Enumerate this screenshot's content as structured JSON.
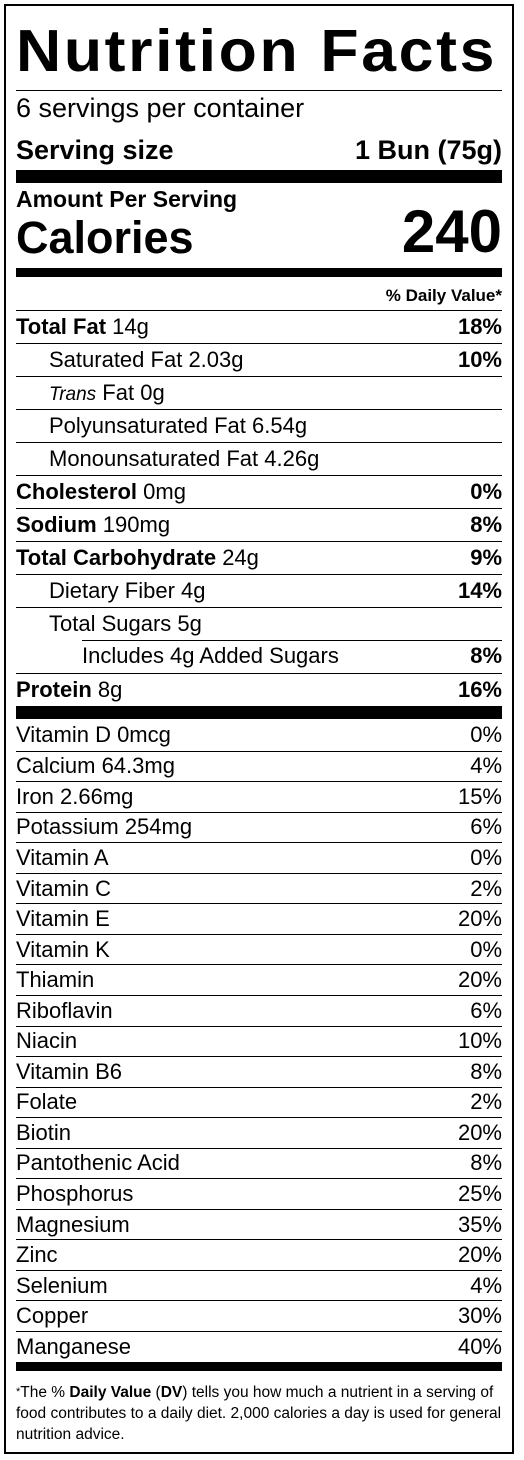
{
  "title": "Nutrition Facts",
  "servings_per_container": "6 servings per container",
  "serving_size": {
    "label": "Serving size",
    "value": "1 Bun (75g)"
  },
  "amount_per_serving": "Amount Per Serving",
  "calories": {
    "label": "Calories",
    "value": "240"
  },
  "daily_value_header": "% Daily Value*",
  "nutrients": [
    {
      "name": "Total Fat",
      "amount": "14g",
      "dv": "18%",
      "bold": true,
      "indent": 0
    },
    {
      "name": "Saturated Fat",
      "amount": "2.03g",
      "dv": "10%",
      "bold": false,
      "indent": 1
    },
    {
      "name": "Trans",
      "name_suffix": "Fat",
      "amount": "0g",
      "dv": "",
      "bold": false,
      "indent": 1,
      "italic_prefix": true
    },
    {
      "name": "Polyunsaturated Fat",
      "amount": "6.54g",
      "dv": "",
      "bold": false,
      "indent": 1
    },
    {
      "name": "Monounsaturated Fat",
      "amount": "4.26g",
      "dv": "",
      "bold": false,
      "indent": 1
    },
    {
      "name": "Cholesterol",
      "amount": "0mg",
      "dv": "0%",
      "bold": true,
      "indent": 0
    },
    {
      "name": "Sodium",
      "amount": "190mg",
      "dv": "8%",
      "bold": true,
      "indent": 0
    },
    {
      "name": "Total Carbohydrate",
      "amount": "24g",
      "dv": "9%",
      "bold": true,
      "indent": 0
    },
    {
      "name": "Dietary Fiber",
      "amount": "4g",
      "dv": "14%",
      "bold": false,
      "indent": 1
    },
    {
      "name": "Total Sugars",
      "amount": "5g",
      "dv": "",
      "bold": false,
      "indent": 1
    },
    {
      "name": "Includes 4g Added Sugars",
      "amount": "",
      "dv": "8%",
      "bold": false,
      "indent": 2
    },
    {
      "name": "Protein",
      "amount": "8g",
      "dv": "16%",
      "bold": true,
      "indent": 0
    }
  ],
  "vitamins": [
    {
      "name": "Vitamin D 0mcg",
      "dv": "0%"
    },
    {
      "name": "Calcium 64.3mg",
      "dv": "4%"
    },
    {
      "name": "Iron 2.66mg",
      "dv": "15%"
    },
    {
      "name": "Potassium 254mg",
      "dv": "6%"
    },
    {
      "name": "Vitamin A",
      "dv": "0%"
    },
    {
      "name": "Vitamin C",
      "dv": "2%"
    },
    {
      "name": "Vitamin E",
      "dv": "20%"
    },
    {
      "name": "Vitamin K",
      "dv": "0%"
    },
    {
      "name": "Thiamin",
      "dv": "20%"
    },
    {
      "name": "Riboflavin",
      "dv": "6%"
    },
    {
      "name": "Niacin",
      "dv": "10%"
    },
    {
      "name": "Vitamin B6",
      "dv": "8%"
    },
    {
      "name": "Folate",
      "dv": "2%"
    },
    {
      "name": "Biotin",
      "dv": "20%"
    },
    {
      "name": "Pantothenic Acid",
      "dv": "8%"
    },
    {
      "name": "Phosphorus",
      "dv": "25%"
    },
    {
      "name": "Magnesium",
      "dv": "35%"
    },
    {
      "name": "Zinc",
      "dv": "20%"
    },
    {
      "name": "Selenium",
      "dv": "4%"
    },
    {
      "name": "Copper",
      "dv": "30%"
    },
    {
      "name": "Manganese",
      "dv": "40%"
    }
  ],
  "footnote": {
    "star": "*",
    "parts": [
      "The % ",
      "Daily Value",
      " (",
      "DV",
      ") tells you how much a nutrient in a serving of food contributes to a daily diet. 2,000 calories a day is used for general nutrition advice."
    ]
  }
}
